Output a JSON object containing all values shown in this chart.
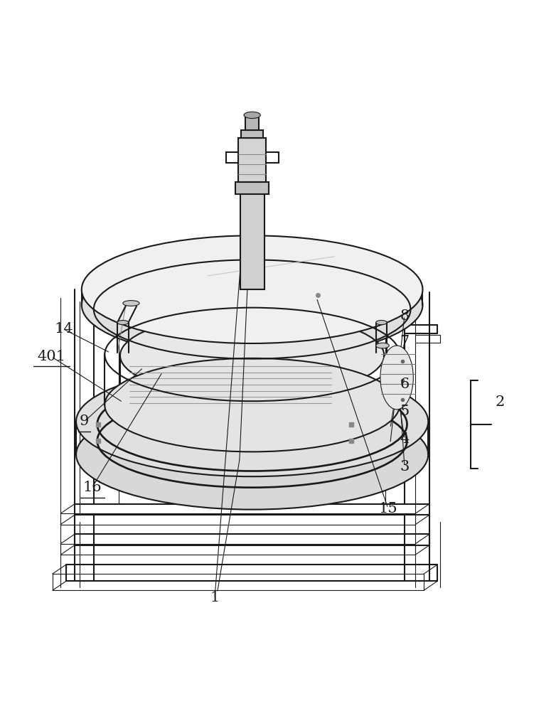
{
  "bg_color": "#ffffff",
  "line_color": "#1a1a1a",
  "underlined_labels": [
    "9",
    "16",
    "401"
  ],
  "bracket_labels": [
    "3",
    "4",
    "5",
    "6"
  ]
}
